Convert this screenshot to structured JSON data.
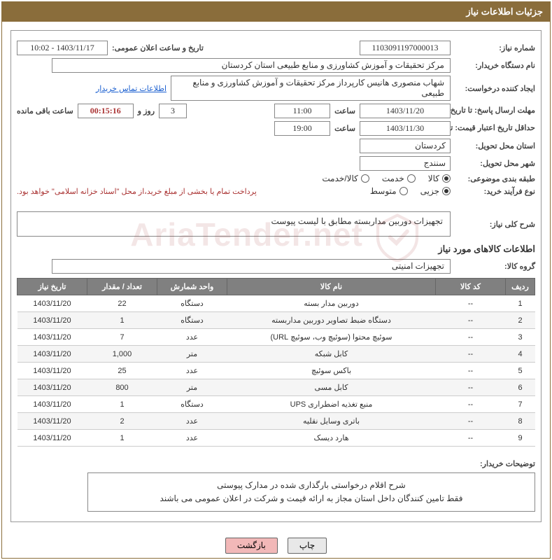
{
  "title": "جزئیات اطلاعات نیاز",
  "fields": {
    "need_no_label": "شماره نیاز:",
    "need_no": "1103091197000013",
    "announce_label": "تاریخ و ساعت اعلان عمومی:",
    "announce": "1403/11/17 - 10:02",
    "buyer_org_label": "نام دستگاه خریدار:",
    "buyer_org": "مرکز تحقیقات و آموزش کشاورزی و منابع طبیعی استان کردستان",
    "requester_label": "ایجاد کننده درخواست:",
    "requester": "شهاب منصوری هانیس کارپرداز مرکز تحقیقات و آموزش کشاورزی و منابع طبیعی",
    "contact_link": "اطلاعات تماس خریدار",
    "reply_deadline_label": "مهلت ارسال پاسخ: تا تاریخ:",
    "reply_date": "1403/11/20",
    "time_label": "ساعت",
    "reply_time": "11:00",
    "countdown_days": "3",
    "days_and": "روز و",
    "countdown_time": "00:15:16",
    "remaining": "ساعت باقی مانده",
    "valid_label": "حداقل تاریخ اعتبار قیمت: تا تاریخ:",
    "valid_date": "1403/11/30",
    "valid_time": "19:00",
    "province_label": "استان محل تحویل:",
    "province": "کردستان",
    "city_label": "شهر محل تحویل:",
    "city": "سنندج",
    "category_label": "طبقه بندی موضوعی:",
    "cat_goods": "کالا",
    "cat_service": "خدمت",
    "cat_both": "کالا/خدمت",
    "purchase_type_label": "نوع فرآیند خرید:",
    "pt_minor": "جزیی",
    "pt_medium": "متوسط",
    "payment_note": "پرداخت تمام یا بخشی از مبلغ خرید،از محل \"اسناد خزانه اسلامی\" خواهد بود.",
    "overview_label": "شرح کلی نیاز:",
    "overview": "تجهیزات دوربین مداربسته مطابق با لیست پیوست",
    "goods_section": "اطلاعات کالاهای مورد نیاز",
    "group_label": "گروه کالا:",
    "group": "تجهیزات امنیتی",
    "buyer_desc_label": "توضیحات خریدار:",
    "buyer_desc_1": "شرح اقلام درخواستی بارگذاری شده در مدارک پیوستی",
    "buyer_desc_2": "فقط تامین کنندگان داخل استان مجاز به ارائه قیمت و  شرکت در اعلان عمومی می باشند"
  },
  "table": {
    "headers": [
      "ردیف",
      "کد کالا",
      "نام کالا",
      "واحد شمارش",
      "تعداد / مقدار",
      "تاریخ نیاز"
    ],
    "rows": [
      [
        "1",
        "--",
        "دوربین مدار بسته",
        "دستگاه",
        "22",
        "1403/11/20"
      ],
      [
        "2",
        "--",
        "دستگاه ضبط تصاویر دوربین مداربسته",
        "دستگاه",
        "1",
        "1403/11/20"
      ],
      [
        "3",
        "--",
        "سوئیچ محتوا (سوئیچ وب، سوئیچ URL)",
        "عدد",
        "7",
        "1403/11/20"
      ],
      [
        "4",
        "--",
        "کابل شبکه",
        "متر",
        "1,000",
        "1403/11/20"
      ],
      [
        "5",
        "--",
        "باکس سوئیچ",
        "عدد",
        "25",
        "1403/11/20"
      ],
      [
        "6",
        "--",
        "کابل مسی",
        "متر",
        "800",
        "1403/11/20"
      ],
      [
        "7",
        "--",
        "منبع تغذیه اضطراری UPS",
        "دستگاه",
        "1",
        "1403/11/20"
      ],
      [
        "8",
        "--",
        "باتری وسایل نقلیه",
        "عدد",
        "2",
        "1403/11/20"
      ],
      [
        "9",
        "--",
        "هارد دیسک",
        "عدد",
        "1",
        "1403/11/20"
      ]
    ]
  },
  "buttons": {
    "print": "چاپ",
    "back": "بازگشت"
  },
  "watermark_text": "AriaTender.net",
  "colors": {
    "header_bg": "#8a6d3b",
    "th_bg": "#808080",
    "link": "#1a5fd0",
    "back_btn": "#f2b8b8"
  }
}
